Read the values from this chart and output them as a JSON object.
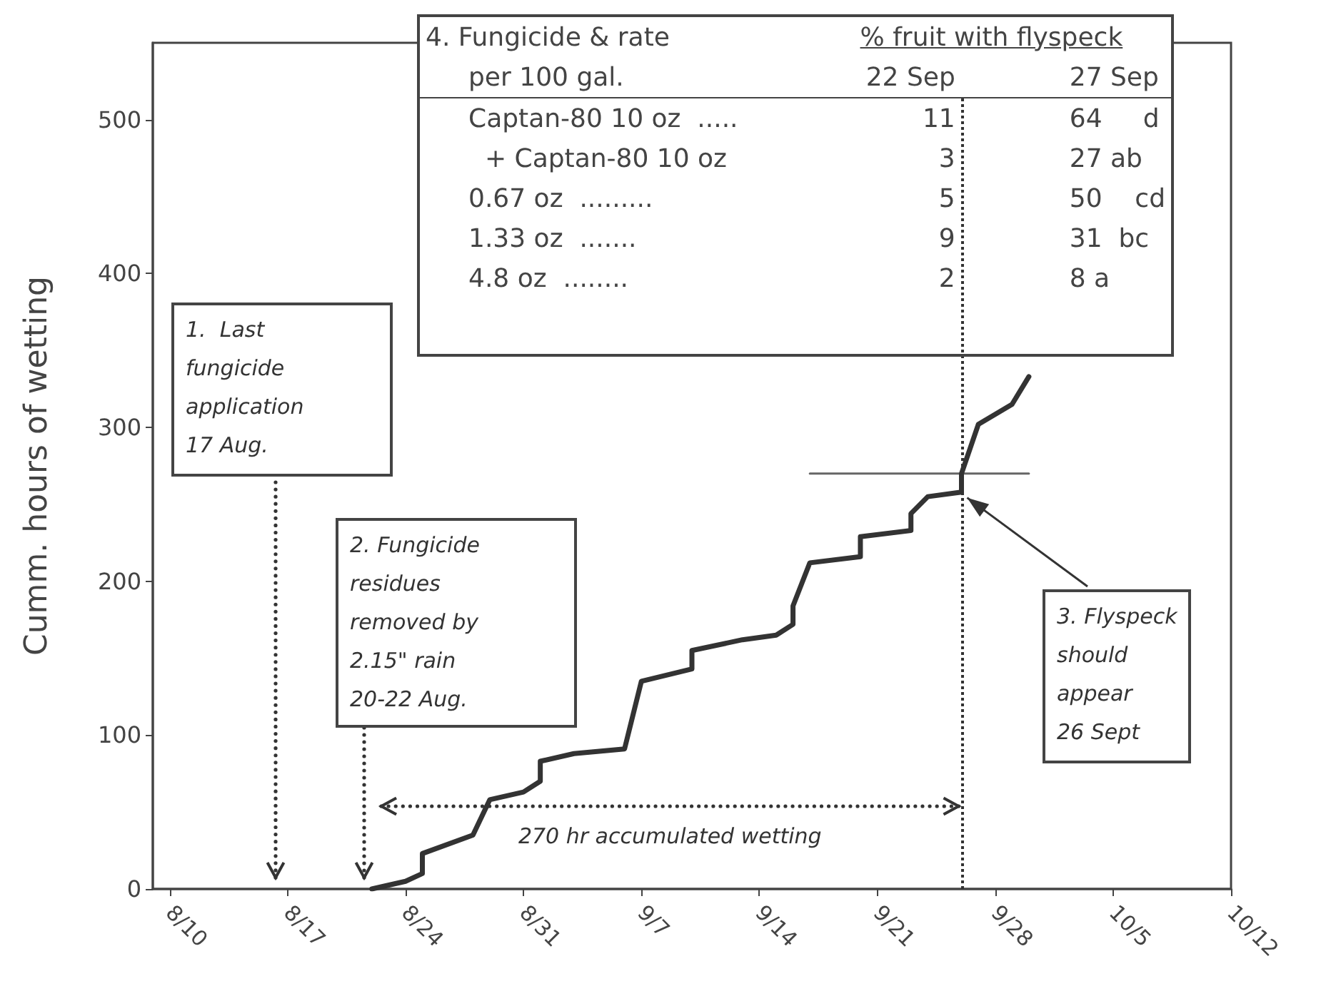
{
  "chart_data": {
    "type": "line",
    "ylabel": "Cumm. hours of wetting",
    "xlim": [
      "--08-09",
      "--10-12"
    ],
    "xticks": [
      {
        "value": "--08-10",
        "label": "8/10"
      },
      {
        "value": "--08-17",
        "label": "8/17"
      },
      {
        "value": "--08-24",
        "label": "8/24"
      },
      {
        "value": "--08-31",
        "label": "8/31"
      },
      {
        "value": "--09-07",
        "label": "9/7"
      },
      {
        "value": "--09-14",
        "label": "9/14"
      },
      {
        "value": "--09-21",
        "label": "9/21"
      },
      {
        "value": "--09-28",
        "label": "9/28"
      },
      {
        "value": "--10-05",
        "label": "10/5"
      },
      {
        "value": "--10-12",
        "label": "10/12"
      }
    ],
    "ylim": [
      0,
      550
    ],
    "yticks": [
      0,
      100,
      200,
      300,
      400,
      500
    ],
    "grid": false,
    "marker": "none",
    "line_style": "solid",
    "series": [
      {
        "color": "#333333",
        "x": [
          "--08-22",
          "--08-24",
          "--08-25",
          "--08-25",
          "--08-28",
          "--08-29",
          "--08-31",
          "--09-01",
          "--09-01",
          "--09-03",
          "--09-06",
          "--09-07",
          "--09-10",
          "--09-10",
          "--09-13",
          "--09-15",
          "--09-16",
          "--09-16",
          "--09-17",
          "--09-20",
          "--09-20",
          "--09-23",
          "--09-23",
          "--09-24",
          "--09-26",
          "--09-26",
          "--09-27",
          "--09-29",
          "--09-30"
        ],
        "values": [
          0,
          5,
          10,
          23,
          35,
          58,
          63,
          70,
          83,
          88,
          91,
          135,
          143,
          155,
          162,
          165,
          172,
          184,
          212,
          216,
          229,
          233,
          244,
          255,
          258,
          270,
          302,
          315,
          333
        ]
      },
      {
        "color": "#666666",
        "x": [
          "--09-17",
          "--09-30"
        ],
        "values": [
          270,
          270
        ]
      }
    ],
    "ref_lines": [
      {
        "axis": "x",
        "value": "--09-26",
        "line_style": "dotted",
        "color": "#333333"
      }
    ],
    "annotations": [
      "1.  Last\nfungicide\napplication\n17 Aug.",
      "2. Fungicide\nresidues\nremoved by\n2.15\" rain\n20-22 Aug.",
      {
        "text": "3. Flyspeck\nshould\nappear\n26 Sept",
        "x": "--09-26",
        "y": 258
      },
      "270 hr accumulated wetting",
      "4. Fungicide & rate\t% fruit with flyspeck\nper 100 gal.\t22 Sep\t27 Sep\nCaptan-80 10 oz  .....\t11\t64     d\n  + Captan-80 10 oz\t3\t27 ab\n0.67 oz  .........\t5\t50    cd\n1.33 oz  .......\t9\t31  bc\n4.8 oz  ........\t2\t8 a"
    ]
  }
}
